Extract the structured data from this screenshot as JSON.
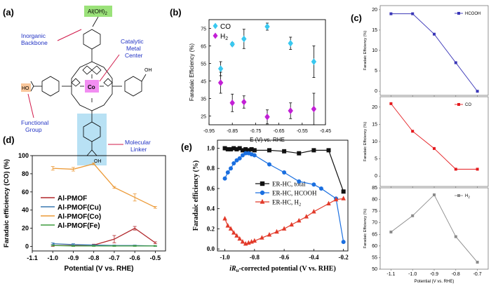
{
  "panels": {
    "a": "(a)",
    "b": "(b)",
    "c": "(c)",
    "d": "(d)",
    "e": "(e)"
  },
  "diagram_a": {
    "top_group": "Al(OH)",
    "top_group_sub": "2",
    "metal": "Co",
    "ho_group": "HO",
    "oh_group": "OH",
    "oh_bottom": "OH",
    "labels": {
      "inorganic": "Inorganic Backbone",
      "catalytic": "Catalytic Metal Center",
      "functional": "Functional Group",
      "linker": "Molecular Linker"
    }
  },
  "chart_data": [
    {
      "panel": "b",
      "type": "scatter",
      "xlabel": "E (V) vs. RHE",
      "ylabel": "Faradaic Efficiency (%)",
      "xlim": [
        -0.95,
        -0.45
      ],
      "ylim": [
        20,
        80
      ],
      "xticks": [
        "-0.95",
        "-0.85",
        "-0.75",
        "-0.65",
        "-0.55",
        "-0.45"
      ],
      "yticks": [
        "25",
        "35",
        "45",
        "55",
        "65",
        "75"
      ],
      "legend": "top-left",
      "series": [
        {
          "name": "CO",
          "color": "#39c8f0",
          "x": [
            -0.9,
            -0.85,
            -0.8,
            -0.7,
            -0.6,
            -0.5
          ],
          "y": [
            52,
            66,
            69,
            76,
            66.5,
            56
          ],
          "err": [
            4,
            1,
            5.5,
            2,
            3.5,
            9
          ]
        },
        {
          "name": "H2",
          "label": "H",
          "sub": "2",
          "color": "#c21fd6",
          "x": [
            -0.9,
            -0.85,
            -0.8,
            -0.7,
            -0.6,
            -0.5
          ],
          "y": [
            44,
            32.5,
            33,
            24.5,
            28,
            29
          ],
          "err": [
            6,
            5,
            3.5,
            4,
            4.5,
            9
          ]
        }
      ]
    },
    {
      "panel": "c",
      "type": "line",
      "subplots": [
        {
          "name": "HCOOH",
          "color": "#3b37b8",
          "ylabel": "Faradaic Efficiency (%)",
          "x": [
            -1.1,
            -1.0,
            -0.9,
            -0.8,
            -0.7
          ],
          "y": [
            19,
            19,
            14,
            7,
            0
          ],
          "ylim": [
            -1,
            21
          ],
          "yticks": [
            "0",
            "5",
            "10",
            "15",
            "20"
          ]
        },
        {
          "name": "CO",
          "color": "#e4191d",
          "ylabel": "Faradaic Efficiency (%)",
          "x": [
            -1.1,
            -1.0,
            -0.9,
            -0.8,
            -0.7
          ],
          "y": [
            21,
            13,
            8,
            2,
            2
          ],
          "ylim": [
            -3,
            23
          ],
          "yticks": [
            "0",
            "5",
            "10",
            "15",
            "20"
          ]
        },
        {
          "name": "H2",
          "label": "H",
          "sub": "2",
          "color": "#8a8a8a",
          "ylabel": "Faradaic Efficiency (%)",
          "x": [
            -1.1,
            -1.0,
            -0.9,
            -0.8,
            -0.7
          ],
          "y": [
            66,
            73,
            82,
            64,
            53
          ],
          "ylim": [
            50,
            85
          ],
          "yticks": [
            "50",
            "55",
            "60",
            "65",
            "70",
            "75",
            "80",
            "85"
          ]
        }
      ],
      "xlim": [
        -1.15,
        -0.65
      ],
      "xticks": [
        "-1.1",
        "-1.0",
        "-0.9",
        "-0.8",
        "-0.7"
      ],
      "xlabel": "Potential (V vs. RHE)"
    },
    {
      "panel": "d",
      "type": "line",
      "xlabel": "Potential (V vs. RHE)",
      "ylabel": "Faradaic efficiency (CO) (%)",
      "xlim": [
        -1.1,
        -0.45
      ],
      "ylim": [
        -5,
        100
      ],
      "xticks": [
        "-1.1",
        "-1.0",
        "-0.9",
        "-0.8",
        "-0.7",
        "-0.6",
        "-0.5"
      ],
      "yticks": [
        "0",
        "20",
        "40",
        "60",
        "80",
        "100"
      ],
      "legend": "bottom-left",
      "series": [
        {
          "name": "Al-PMOF",
          "color": "#b0262a",
          "x": [
            -1.0,
            -0.9,
            -0.8,
            -0.7,
            -0.6,
            -0.5
          ],
          "y": [
            1,
            1,
            1.5,
            8,
            20,
            4
          ],
          "err": [
            1,
            1,
            1,
            4,
            2,
            1
          ]
        },
        {
          "name": "Al-PMOF(Cu)",
          "color": "#3a78b0",
          "x": [
            -1.0,
            -0.9,
            -0.8,
            -0.7,
            -0.6,
            -0.5
          ],
          "y": [
            3,
            2,
            1.5,
            1,
            1,
            0.5
          ],
          "err": [
            1,
            1,
            0.5,
            0.5,
            0.5,
            0.5
          ]
        },
        {
          "name": "Al-PMOF(Co)",
          "color": "#ec9a37",
          "x": [
            -1.0,
            -0.9,
            -0.8,
            -0.7,
            -0.6,
            -0.5
          ],
          "y": [
            86,
            85,
            91,
            65,
            54,
            43
          ],
          "err": [
            2,
            2,
            1,
            1,
            4,
            1
          ]
        },
        {
          "name": "Al-PMOF(Fe)",
          "color": "#3d9b3d",
          "x": [
            -1.0,
            -0.9,
            -0.8,
            -0.7,
            -0.6,
            -0.5
          ],
          "y": [
            1,
            0.5,
            0.5,
            0.5,
            0.5,
            0.5
          ],
          "err": [
            0.5,
            0.5,
            0.5,
            0.5,
            0.5,
            0.5
          ]
        }
      ]
    },
    {
      "panel": "e",
      "type": "line",
      "xlabel_main": "iR",
      "xlabel_sub": "u",
      "xlabel_rest": "-corrected potential (V vs. RHE)",
      "ylabel": "Faradaic efficiency (%)",
      "xlim": [
        -1.05,
        -0.17
      ],
      "ylim": [
        -0.02,
        1.08
      ],
      "xticks": [
        "-1.0",
        "-0.8",
        "-0.6",
        "-0.4",
        "-0.2"
      ],
      "yticks": [
        "0.0",
        "0.2",
        "0.4",
        "0.6",
        "0.8",
        "1.0"
      ],
      "legend": "center",
      "series": [
        {
          "name": "ER-HC, total",
          "color": "#111111",
          "marker": "square",
          "x": [
            -1.0,
            -0.98,
            -0.96,
            -0.94,
            -0.92,
            -0.9,
            -0.88,
            -0.86,
            -0.84,
            -0.82,
            -0.8,
            -0.7,
            -0.6,
            -0.5,
            -0.4,
            -0.3,
            -0.2
          ],
          "y": [
            1.0,
            0.99,
            0.99,
            1.0,
            0.99,
            1.0,
            0.98,
            0.99,
            0.98,
            0.99,
            0.98,
            0.98,
            0.97,
            0.95,
            0.98,
            0.98,
            0.57
          ]
        },
        {
          "name": "ER-HC, HCOOH",
          "color": "#1a6fe0",
          "marker": "circle",
          "x": [
            -1.0,
            -0.98,
            -0.96,
            -0.94,
            -0.92,
            -0.9,
            -0.88,
            -0.86,
            -0.84,
            -0.82,
            -0.8,
            -0.7,
            -0.6,
            -0.5,
            -0.4,
            -0.35,
            -0.25,
            -0.2
          ],
          "y": [
            0.7,
            0.76,
            0.8,
            0.85,
            0.88,
            0.9,
            0.93,
            0.95,
            0.95,
            0.94,
            0.93,
            0.84,
            0.76,
            0.67,
            0.64,
            0.6,
            0.5,
            0.07
          ]
        },
        {
          "name": "ER-HC, H2",
          "label": "ER-HC, H",
          "sub": "2",
          "color": "#e23a2a",
          "marker": "triangle",
          "x": [
            -1.0,
            -0.98,
            -0.96,
            -0.94,
            -0.92,
            -0.9,
            -0.88,
            -0.86,
            -0.84,
            -0.82,
            -0.8,
            -0.75,
            -0.7,
            -0.65,
            -0.6,
            -0.55,
            -0.5,
            -0.45,
            -0.4,
            -0.3,
            -0.25,
            -0.2
          ],
          "y": [
            0.3,
            0.23,
            0.2,
            0.16,
            0.13,
            0.1,
            0.07,
            0.05,
            0.06,
            0.07,
            0.08,
            0.11,
            0.14,
            0.17,
            0.2,
            0.24,
            0.28,
            0.32,
            0.37,
            0.45,
            0.49,
            0.5
          ]
        }
      ]
    }
  ]
}
